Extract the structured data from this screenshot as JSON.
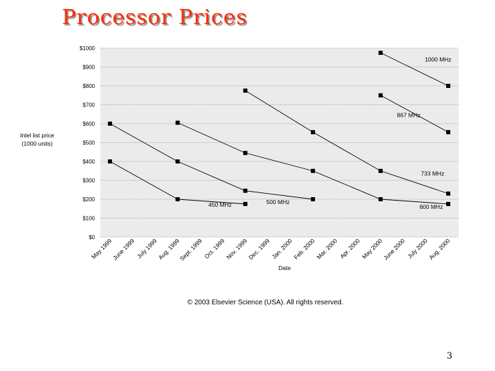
{
  "slide": {
    "title": "Processor Prices",
    "page_number": "3"
  },
  "chart_data": {
    "type": "line",
    "ylabel_lines": [
      "Intel list price",
      "(1000 units)"
    ],
    "xlabel": "Date",
    "categories": [
      "May 1999",
      "June 1999",
      "July 1999",
      "Aug. 1999",
      "Sept. 1999",
      "Oct. 1999",
      "Nov. 1999",
      "Dec. 1999",
      "Jan. 2000",
      "Feb. 2000",
      "Mar. 2000",
      "Apr. 2000",
      "May 2000",
      "June 2000",
      "July 2000",
      "Aug. 2000"
    ],
    "y_ticks": [
      "$0",
      "$100",
      "$200",
      "$300",
      "$400",
      "$500",
      "$600",
      "$700",
      "$800",
      "$900",
      "$1000"
    ],
    "ylim": [
      0,
      1000
    ],
    "grid": true,
    "copyright": "© 2003 Elsevier Science (USA). All rights reserved.",
    "colors": {
      "plot_bg": "#ebebeb",
      "line": "#000000",
      "grid": "#9a9a9a",
      "text": "#000000"
    },
    "series": [
      {
        "name": "450 MHz",
        "points": [
          [
            "May 1999",
            400
          ],
          [
            "Aug. 1999",
            200
          ],
          [
            "Nov. 1999",
            175
          ]
        ]
      },
      {
        "name": "500 MHz",
        "points": [
          [
            "May 1999",
            600
          ],
          [
            "Aug. 1999",
            400
          ],
          [
            "Nov. 1999",
            245
          ],
          [
            "Feb. 2000",
            200
          ]
        ]
      },
      {
        "name": "600 MHz",
        "points": [
          [
            "Aug. 1999",
            605
          ],
          [
            "Nov. 1999",
            445
          ],
          [
            "Feb. 2000",
            350
          ],
          [
            "May 2000",
            200
          ],
          [
            "Aug. 2000",
            175
          ]
        ]
      },
      {
        "name": "733 MHz",
        "points": [
          [
            "Nov. 1999",
            775
          ],
          [
            "Feb. 2000",
            555
          ],
          [
            "May 2000",
            350
          ],
          [
            "Aug. 2000",
            230
          ]
        ]
      },
      {
        "name": "867 MHz",
        "points": [
          [
            "May 2000",
            750
          ],
          [
            "Aug. 2000",
            555
          ]
        ]
      },
      {
        "name": "1000 MHz",
        "points": [
          [
            "May 2000",
            975
          ],
          [
            "Aug. 2000",
            800
          ]
        ]
      }
    ]
  }
}
